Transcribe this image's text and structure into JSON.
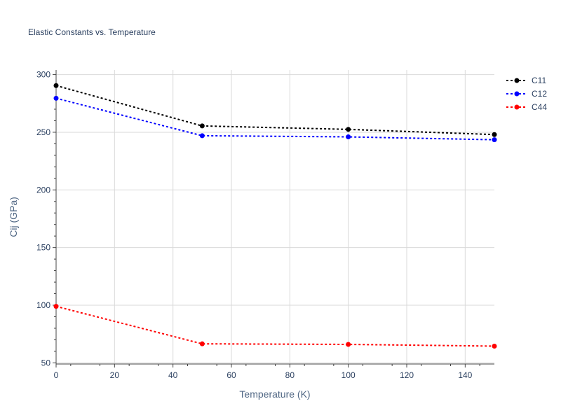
{
  "chart_data": {
    "type": "line",
    "title": "Elastic Constants vs. Temperature",
    "xlabel": "Temperature (K)",
    "ylabel": "Cij (GPa)",
    "xlim": [
      0,
      150
    ],
    "ylim": [
      49,
      304
    ],
    "x_ticks": [
      0,
      20,
      40,
      60,
      80,
      100,
      120,
      140
    ],
    "y_ticks": [
      50,
      100,
      150,
      200,
      250,
      300
    ],
    "grid": true,
    "legend_position": "top-right",
    "x": [
      0,
      50,
      100,
      150
    ],
    "series": [
      {
        "name": "C11",
        "color": "#000000",
        "values": [
          290.5,
          255.5,
          252.5,
          248
        ]
      },
      {
        "name": "C12",
        "color": "#0000ff",
        "values": [
          279.5,
          247,
          246,
          243.5
        ]
      },
      {
        "name": "C44",
        "color": "#ff0000",
        "values": [
          99,
          66.5,
          66,
          64.5
        ]
      }
    ]
  }
}
